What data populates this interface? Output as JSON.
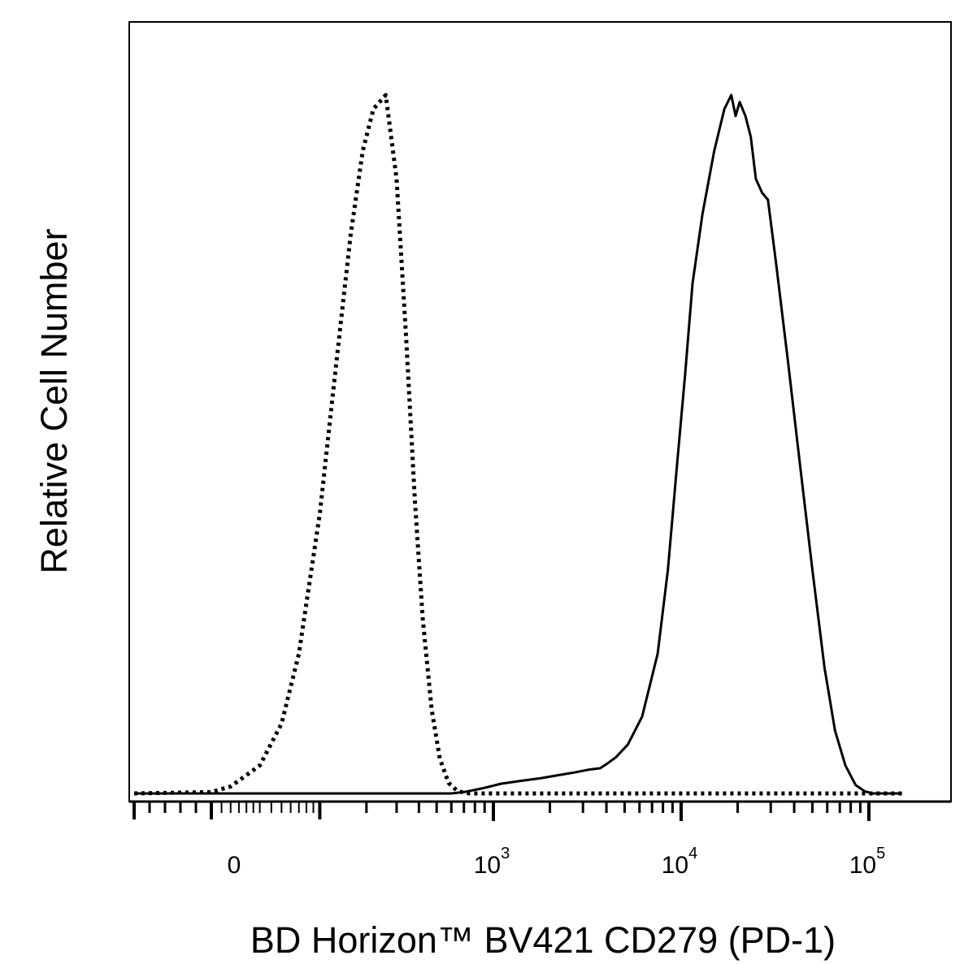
{
  "chart_data": {
    "type": "line",
    "xlabel": "BD Horizon™ BV421  CD279 (PD-1)",
    "ylabel": "Relative Cell Number",
    "x_scale": "biexponential",
    "xlim": [
      -10,
      150000
    ],
    "ylim": [
      0,
      1
    ],
    "grid": false,
    "legend": "none",
    "x_ticks": [
      {
        "value": 0,
        "base": "0",
        "exp": ""
      },
      {
        "value": 1000,
        "base": "10",
        "exp": "3"
      },
      {
        "value": 10000,
        "base": "10",
        "exp": "4"
      },
      {
        "value": 100000,
        "base": "10",
        "exp": "5"
      }
    ],
    "series": [
      {
        "style": "dotted",
        "color": "#000000",
        "points": [
          [
            -10,
            0
          ],
          [
            0,
            0.002
          ],
          [
            10,
            0.01
          ],
          [
            30,
            0.04
          ],
          [
            50,
            0.1
          ],
          [
            70,
            0.2
          ],
          [
            100,
            0.4
          ],
          [
            130,
            0.62
          ],
          [
            160,
            0.8
          ],
          [
            190,
            0.92
          ],
          [
            220,
            0.98
          ],
          [
            260,
            1.0
          ],
          [
            300,
            0.88
          ],
          [
            340,
            0.65
          ],
          [
            380,
            0.42
          ],
          [
            420,
            0.25
          ],
          [
            470,
            0.12
          ],
          [
            520,
            0.05
          ],
          [
            580,
            0.015
          ],
          [
            650,
            0.003
          ],
          [
            750,
            0
          ],
          [
            1000,
            0
          ],
          [
            150000,
            0
          ]
        ]
      },
      {
        "style": "solid",
        "color": "#000000",
        "points": [
          [
            -10,
            0
          ],
          [
            600,
            0
          ],
          [
            700,
            0.002
          ],
          [
            900,
            0.008
          ],
          [
            1100,
            0.014
          ],
          [
            1400,
            0.018
          ],
          [
            1800,
            0.022
          ],
          [
            2200,
            0.026
          ],
          [
            2700,
            0.03
          ],
          [
            3200,
            0.034
          ],
          [
            3700,
            0.036
          ],
          [
            4000,
            0.042
          ],
          [
            4500,
            0.052
          ],
          [
            5200,
            0.07
          ],
          [
            6200,
            0.11
          ],
          [
            7500,
            0.2
          ],
          [
            8500,
            0.32
          ],
          [
            9500,
            0.47
          ],
          [
            10500,
            0.6
          ],
          [
            11500,
            0.73
          ],
          [
            13000,
            0.83
          ],
          [
            15000,
            0.92
          ],
          [
            17000,
            0.98
          ],
          [
            18500,
            1.0
          ],
          [
            19500,
            0.97
          ],
          [
            20500,
            0.99
          ],
          [
            22000,
            0.97
          ],
          [
            23500,
            0.94
          ],
          [
            25000,
            0.88
          ],
          [
            27000,
            0.86
          ],
          [
            29000,
            0.85
          ],
          [
            32000,
            0.76
          ],
          [
            37000,
            0.62
          ],
          [
            43000,
            0.47
          ],
          [
            50000,
            0.32
          ],
          [
            58000,
            0.18
          ],
          [
            66000,
            0.09
          ],
          [
            75000,
            0.04
          ],
          [
            85000,
            0.012
          ],
          [
            95000,
            0.003
          ],
          [
            105000,
            0
          ],
          [
            150000,
            0
          ]
        ]
      }
    ]
  }
}
